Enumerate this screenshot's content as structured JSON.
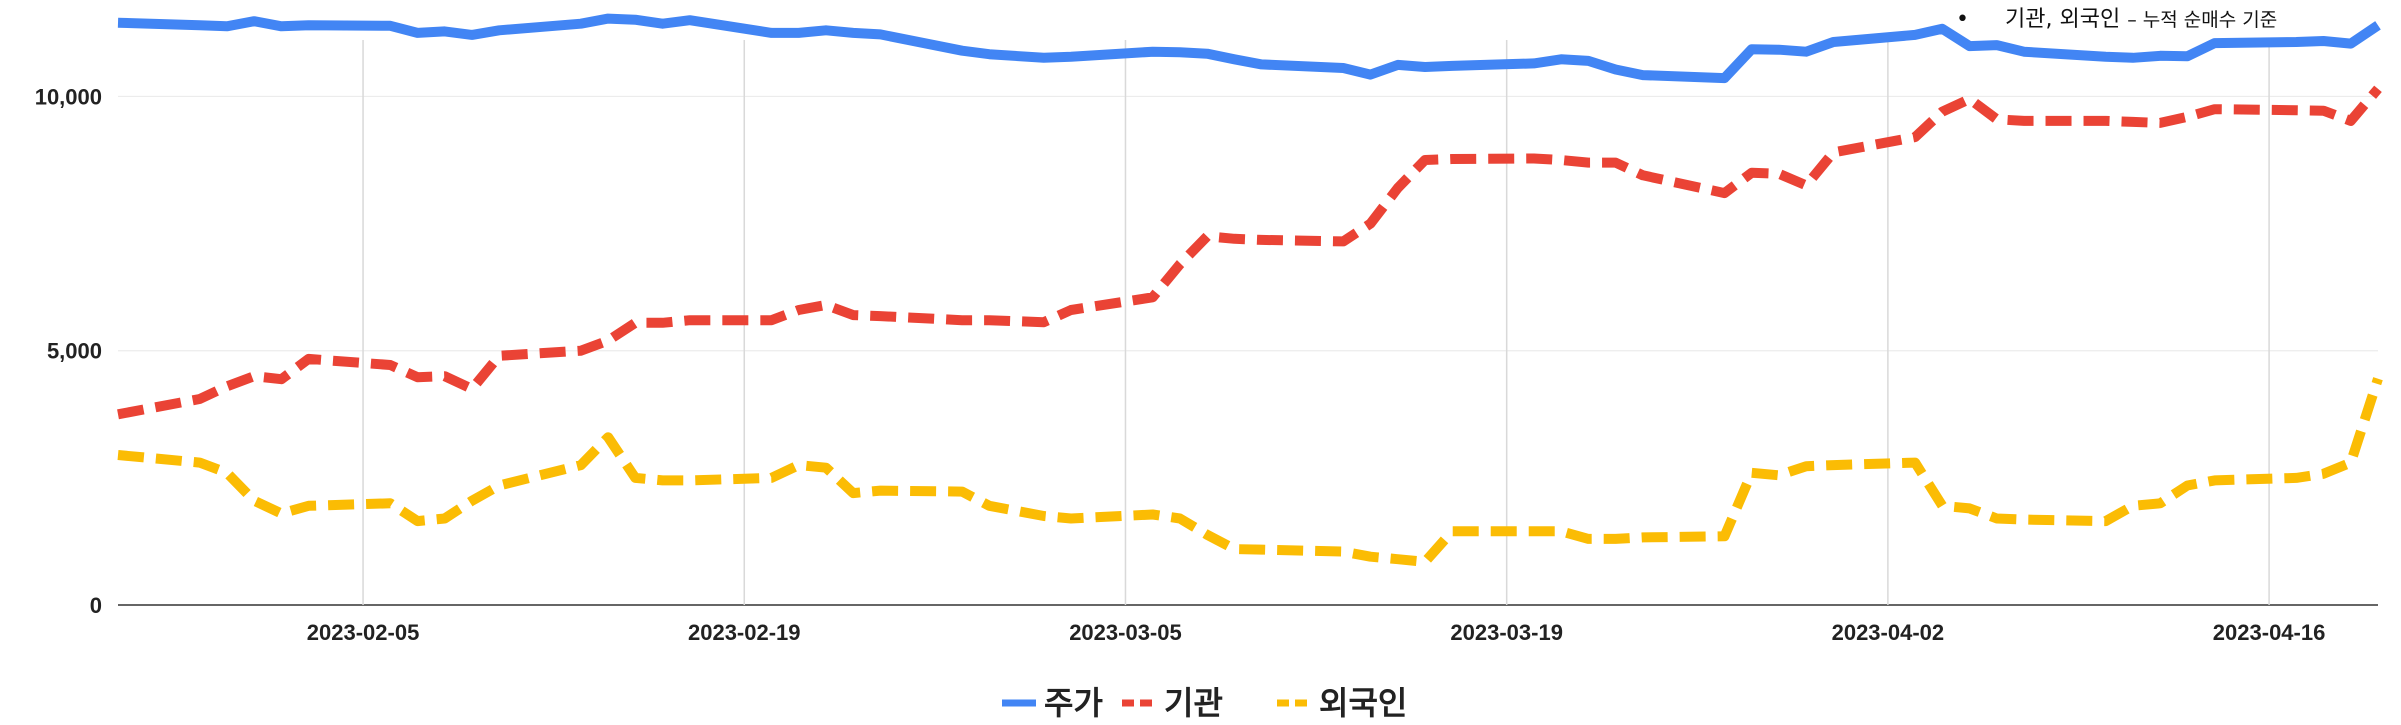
{
  "note": {
    "bullet": "•",
    "text_main": "기관, 외국인",
    "text_sep": " – ",
    "text_rest": "누적 순매수 기준"
  },
  "chart_data": {
    "type": "line",
    "y_ticks": [
      "0",
      "5,000",
      "10,000"
    ],
    "ylim": [
      0,
      11700
    ],
    "x_ticks": [
      "2023-02-05",
      "2023-02-19",
      "2023-03-05",
      "2023-03-19",
      "2023-04-02",
      "2023-04-16"
    ],
    "grid": "vertical lines at x ticks; horizontal lines at y ticks",
    "legend_position": "bottom",
    "dates": [
      "2023-01-27",
      "2023-01-30",
      "2023-01-31",
      "2023-02-01",
      "2023-02-02",
      "2023-02-03",
      "2023-02-06",
      "2023-02-07",
      "2023-02-08",
      "2023-02-09",
      "2023-02-10",
      "2023-02-13",
      "2023-02-14",
      "2023-02-15",
      "2023-02-16",
      "2023-02-17",
      "2023-02-20",
      "2023-02-21",
      "2023-02-22",
      "2023-02-23",
      "2023-02-24",
      "2023-02-27",
      "2023-02-28",
      "2023-03-02",
      "2023-03-03",
      "2023-03-06",
      "2023-03-07",
      "2023-03-08",
      "2023-03-09",
      "2023-03-10",
      "2023-03-13",
      "2023-03-14",
      "2023-03-15",
      "2023-03-16",
      "2023-03-17",
      "2023-03-20",
      "2023-03-21",
      "2023-03-22",
      "2023-03-23",
      "2023-03-24",
      "2023-03-27",
      "2023-03-28",
      "2023-03-29",
      "2023-03-30",
      "2023-03-31",
      "2023-04-03",
      "2023-04-04",
      "2023-04-05",
      "2023-04-06",
      "2023-04-07",
      "2023-04-10",
      "2023-04-11",
      "2023-04-12",
      "2023-04-13",
      "2023-04-14",
      "2023-04-17",
      "2023-04-18",
      "2023-04-19",
      "2023-04-20"
    ],
    "series": [
      {
        "name": "주가",
        "color": "#4285f4",
        "dash": "solid",
        "values": [
          11450,
          11400,
          11380,
          11480,
          11380,
          11400,
          11390,
          11250,
          11280,
          11210,
          11300,
          11430,
          11530,
          11510,
          11430,
          11500,
          11250,
          11250,
          11300,
          11250,
          11220,
          10900,
          10830,
          10760,
          10780,
          10880,
          10870,
          10840,
          10730,
          10630,
          10560,
          10430,
          10620,
          10580,
          10600,
          10650,
          10730,
          10700,
          10530,
          10420,
          10360,
          10930,
          10920,
          10880,
          11070,
          11210,
          11330,
          10990,
          11010,
          10880,
          10780,
          10760,
          10800,
          10790,
          11050,
          11070,
          11090,
          11040,
          11400
        ]
      },
      {
        "name": "기관",
        "color": "#ea4335",
        "dash": "dashed",
        "values": [
          3750,
          4050,
          4300,
          4500,
          4440,
          4840,
          4720,
          4480,
          4500,
          4250,
          4900,
          5000,
          5200,
          5550,
          5550,
          5600,
          5600,
          5800,
          5900,
          5700,
          5680,
          5600,
          5600,
          5560,
          5800,
          6050,
          6700,
          7250,
          7200,
          7180,
          7150,
          7500,
          8200,
          8750,
          8770,
          8780,
          8750,
          8700,
          8700,
          8450,
          8100,
          8500,
          8480,
          8250,
          8900,
          9200,
          9700,
          9950,
          9550,
          9520,
          9520,
          9500,
          9480,
          9600,
          9750,
          9730,
          9720,
          9520,
          10150
        ]
      },
      {
        "name": "외국인",
        "color": "#fbbc04",
        "dash": "dashed",
        "values": [
          2950,
          2800,
          2600,
          2050,
          1800,
          1950,
          2000,
          1650,
          1700,
          2050,
          2350,
          2750,
          3300,
          2500,
          2450,
          2450,
          2500,
          2750,
          2700,
          2200,
          2250,
          2230,
          1950,
          1750,
          1700,
          1780,
          1700,
          1380,
          1100,
          1090,
          1050,
          950,
          900,
          850,
          1450,
          1450,
          1450,
          1300,
          1300,
          1330,
          1350,
          2600,
          2550,
          2730,
          2750,
          2800,
          1950,
          1900,
          1700,
          1680,
          1650,
          1950,
          2000,
          2350,
          2450,
          2500,
          2580,
          2800,
          4450
        ]
      }
    ]
  }
}
